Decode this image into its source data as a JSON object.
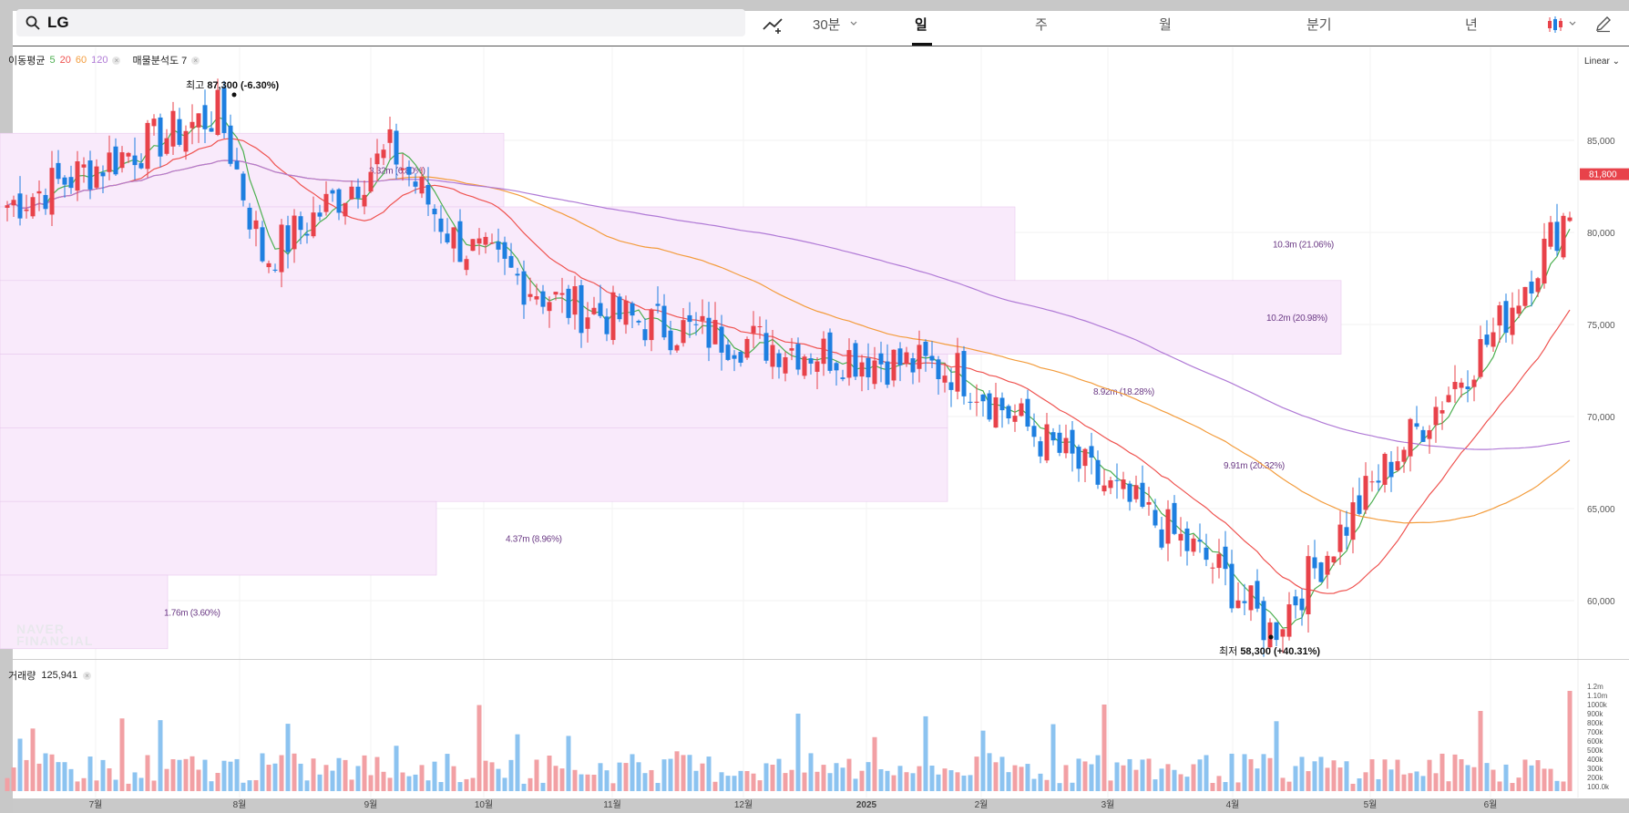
{
  "search": {
    "icon": "search-icon",
    "query": "LG"
  },
  "toolbar": {
    "draw_icon": "trend-add-icon",
    "interval": "30분",
    "timeframes": [
      {
        "label": "일",
        "active": true
      },
      {
        "label": "주",
        "active": false
      },
      {
        "label": "월",
        "active": false
      },
      {
        "label": "분기",
        "active": false
      },
      {
        "label": "년",
        "active": false
      }
    ],
    "chart_type_icon": "candlestick-icon",
    "edit_icon": "pencil-icon"
  },
  "legend": {
    "ma_label": "이동평균",
    "ma_periods": [
      "5",
      "20",
      "60",
      "120"
    ],
    "ma_colors": [
      "#4caf50",
      "#ef5350",
      "#f39c3c",
      "#b07ad6"
    ],
    "profile_label": "매물분석도 7"
  },
  "scale_mode": "Linear",
  "annotations": {
    "high_label": "최고",
    "high_value": "87,300 (-6.30%)",
    "low_label": "최저",
    "low_value": "58,300 (+40.31%)",
    "current_price": "81,800"
  },
  "volume": {
    "label": "거래량",
    "value": "125,941"
  },
  "watermark": [
    "NAVER",
    "FINANCIAL"
  ],
  "colors": {
    "up": "#e8424a",
    "down": "#1e7fe0",
    "up_vol": "#f2a0a4",
    "down_vol": "#8cc3f0",
    "profile": "#f9eafb"
  },
  "chart_data": {
    "type": "candlestick",
    "x_ticks": [
      "7월",
      "8월",
      "9월",
      "10월",
      "11월",
      "12월",
      "2025",
      "2월",
      "3월",
      "4월",
      "5월",
      "6월"
    ],
    "price_ticks": [
      "85,000",
      "80,000",
      "75,000",
      "70,000",
      "65,000",
      "60,000"
    ],
    "ylim": [
      57000,
      89000
    ],
    "volume_ticks": [
      "1.2m",
      "1.10m",
      "1000k",
      "900k",
      "800k",
      "700k",
      "600k",
      "500k",
      "400k",
      "300k",
      "200k",
      "100.0k"
    ],
    "volume_profile": [
      {
        "low": 80000,
        "high": 84000,
        "label": "3.32m (6.80%)"
      },
      {
        "low": 76000,
        "high": 80000,
        "label": "10.3m (21.06%)"
      },
      {
        "low": 72000,
        "high": 76000,
        "label": "10.2m (20.98%)"
      },
      {
        "low": 68000,
        "high": 72000,
        "label": "8.92m (18.28%)"
      },
      {
        "low": 64000,
        "high": 68000,
        "label": "9.91m (20.32%)"
      },
      {
        "low": 60000,
        "high": 64000,
        "label": "4.37m (8.96%)"
      },
      {
        "low": 56000,
        "high": 60000,
        "label": "1.76m (3.60%)"
      }
    ],
    "price_anchors": [
      [
        "7월",
        81500
      ],
      [
        "8월",
        86500
      ],
      [
        "8월",
        78500
      ],
      [
        "9월",
        84500
      ],
      [
        "10월",
        79500
      ],
      [
        "11월",
        76000
      ],
      [
        "12월",
        74500
      ],
      [
        "2025",
        73500
      ],
      [
        "2월",
        72500
      ],
      [
        "3월",
        68500
      ],
      [
        "4월",
        62000
      ],
      [
        "4월",
        58300
      ],
      [
        "5월",
        66500
      ],
      [
        "6월",
        74500
      ],
      [
        "6월",
        81800
      ]
    ]
  }
}
